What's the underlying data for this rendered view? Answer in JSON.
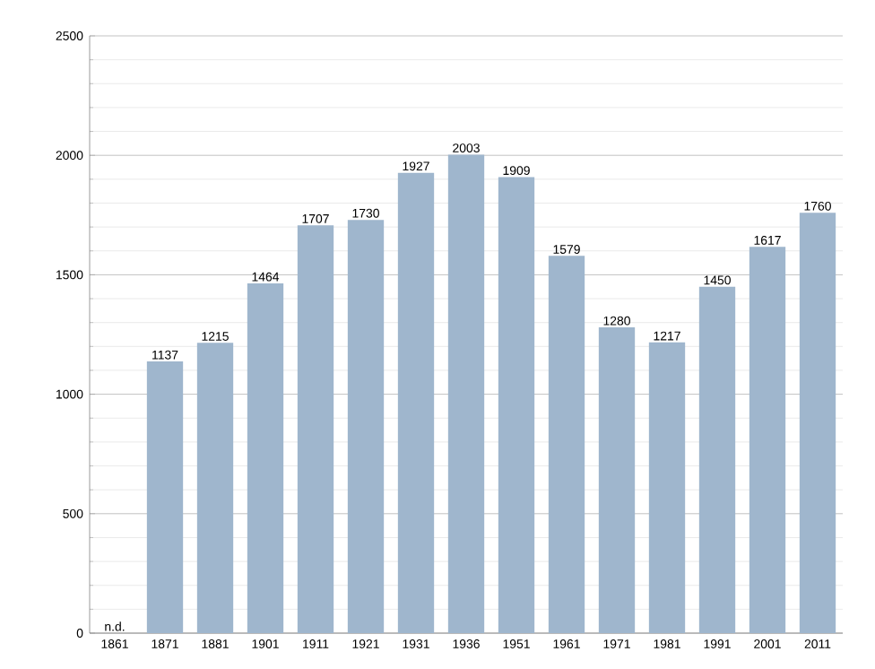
{
  "chart_data": {
    "type": "bar",
    "categories": [
      "1861",
      "1871",
      "1881",
      "1901",
      "1911",
      "1921",
      "1931",
      "1936",
      "1951",
      "1961",
      "1971",
      "1981",
      "1991",
      "2001",
      "2011"
    ],
    "values": [
      null,
      1137,
      1215,
      1464,
      1707,
      1730,
      1927,
      2003,
      1909,
      1579,
      1280,
      1217,
      1450,
      1617,
      1760
    ],
    "value_labels": [
      "n.d.",
      "1137",
      "1215",
      "1464",
      "1707",
      "1730",
      "1927",
      "2003",
      "1909",
      "1579",
      "1280",
      "1217",
      "1450",
      "1617",
      "1760"
    ],
    "color": "#9fb6cd",
    "ylim": [
      0,
      2500
    ],
    "yticks": [
      0,
      500,
      1000,
      1500,
      2000,
      2500
    ],
    "grid": "y"
  }
}
